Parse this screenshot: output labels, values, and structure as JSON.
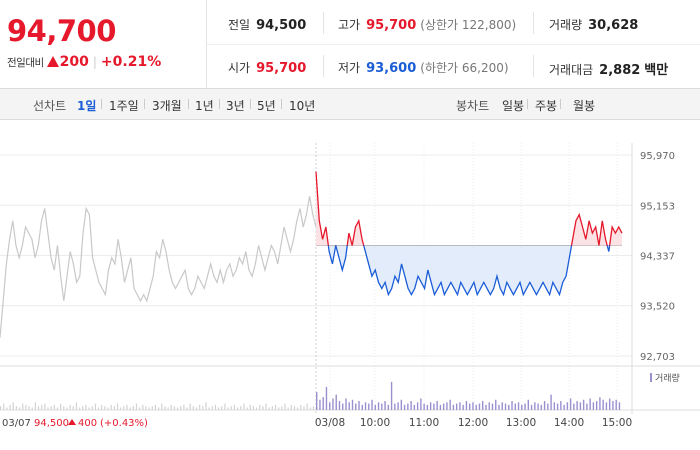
{
  "price": {
    "current": "94,700",
    "change_label": "전일대비",
    "change_amount": "200",
    "change_pct": "+0.21%"
  },
  "stats": {
    "prev": {
      "label": "전일",
      "value": "94,500"
    },
    "high": {
      "label": "고가",
      "value": "95,700",
      "sub": "(상한가 122,800)"
    },
    "volume": {
      "label": "거래량",
      "value": "30,628"
    },
    "open": {
      "label": "시가",
      "value": "95,700"
    },
    "low": {
      "label": "저가",
      "value": "93,600",
      "sub": "(하한가 66,200)"
    },
    "amount": {
      "label": "거래대금",
      "value": "2,882",
      "unit": "백만"
    }
  },
  "line_chart": {
    "label": "선차트",
    "tabs": [
      "1일",
      "1주일",
      "3개월",
      "1년",
      "3년",
      "5년",
      "10년"
    ],
    "active": "1일"
  },
  "candle_chart": {
    "label": "봉차트",
    "tabs": [
      "일봉",
      "주봉",
      "월봉"
    ]
  },
  "colors": {
    "up": "#e5182c",
    "down": "#1a5dd6",
    "prev_day": "#c8c8c8",
    "volume": "#9b8fd0"
  },
  "chart_data": {
    "type": "line",
    "y_ticks": [
      "95,970",
      "95,153",
      "94,337",
      "93,520",
      "92,703"
    ],
    "y_tick_values": [
      95970,
      95153,
      94337,
      93520,
      92703
    ],
    "ylim": [
      92703,
      95970
    ],
    "baseline": 94500,
    "x_ticks": [
      "03/08",
      "10:00",
      "11:00",
      "12:00",
      "13:00",
      "14:00",
      "15:00"
    ],
    "prev_day_date": "03/07",
    "prev_day_close": "94,500",
    "prev_day_change": "400",
    "prev_day_change_pct": "(+0.43%)",
    "legend_volume": "거래량",
    "prev_day_series": [
      93000,
      93600,
      94200,
      94600,
      94900,
      94500,
      94300,
      94500,
      94800,
      94700,
      94600,
      94300,
      94500,
      94900,
      95100,
      94700,
      94300,
      94100,
      94500,
      94000,
      93600,
      94000,
      94400,
      94200,
      93900,
      94000,
      94700,
      95100,
      95000,
      94300,
      94100,
      93900,
      93800,
      93700,
      94100,
      94300,
      94200,
      94600,
      94300,
      93900,
      94100,
      94300,
      93800,
      93700,
      93600,
      93700,
      93600,
      93800,
      94000,
      94400,
      94300,
      94600,
      94400,
      94100,
      93900,
      93800,
      93900,
      94000,
      94100,
      93800,
      93700,
      93800,
      94000,
      93900,
      93800,
      94000,
      94200,
      94000,
      93900,
      94100,
      93900,
      94100,
      94200,
      94000,
      94100,
      94300,
      94200,
      94400,
      94100,
      94000,
      94200,
      94500,
      94300,
      94100,
      94300,
      94500,
      94400,
      94200,
      94500,
      94800,
      94600,
      94400,
      94600,
      94900,
      95100,
      94800,
      95000,
      95300,
      95000,
      94800
    ],
    "today_series": [
      95700,
      94900,
      94600,
      94800,
      94400,
      94200,
      94500,
      94300,
      94100,
      94300,
      94700,
      94500,
      94800,
      94900,
      94600,
      94400,
      94200,
      94000,
      94100,
      93900,
      93800,
      93900,
      93700,
      93800,
      94000,
      93900,
      94200,
      94000,
      93800,
      93700,
      93800,
      94000,
      93900,
      93800,
      94100,
      93900,
      93700,
      93800,
      93900,
      93700,
      93800,
      93900,
      93800,
      93700,
      93900,
      93800,
      93700,
      93800,
      93900,
      93700,
      93800,
      93900,
      93800,
      93700,
      93800,
      94000,
      93800,
      93700,
      93900,
      93800,
      93700,
      93800,
      93900,
      93700,
      93800,
      93900,
      93800,
      93700,
      93800,
      93900,
      93800,
      93700,
      93900,
      93800,
      93700,
      93900,
      94000,
      94300,
      94600,
      94900,
      95000,
      94800,
      94600,
      94900,
      94700,
      94800,
      94500,
      94900,
      94600,
      94400,
      94800,
      94700,
      94800,
      94700
    ],
    "prev_day_volume": [
      3,
      5,
      2,
      4,
      6,
      3,
      2,
      5,
      4,
      3,
      2,
      6,
      3,
      4,
      5,
      2,
      3,
      4,
      2,
      5,
      3,
      2,
      4,
      3,
      6,
      2,
      3,
      4,
      2,
      3,
      5,
      2,
      4,
      3,
      2,
      4,
      3,
      5,
      2,
      3,
      4,
      2,
      3,
      5,
      2,
      4,
      3,
      2,
      3,
      4,
      2,
      5,
      3,
      2,
      4,
      3,
      2,
      3,
      4,
      2,
      5,
      3,
      2,
      4,
      3,
      6,
      2,
      3,
      4,
      2,
      3,
      5,
      2,
      3,
      4,
      2,
      3,
      5,
      2,
      4,
      3,
      2,
      4,
      3,
      5,
      2,
      3,
      4,
      2,
      3,
      5,
      2,
      4,
      3,
      2,
      4,
      3,
      5,
      2,
      3
    ],
    "today_volume": [
      14,
      8,
      10,
      18,
      6,
      9,
      12,
      7,
      5,
      9,
      6,
      8,
      5,
      7,
      4,
      6,
      5,
      8,
      4,
      6,
      5,
      7,
      4,
      22,
      5,
      6,
      8,
      4,
      5,
      7,
      4,
      6,
      9,
      5,
      4,
      6,
      5,
      7,
      4,
      5,
      6,
      8,
      4,
      5,
      6,
      4,
      7,
      5,
      6,
      4,
      5,
      7,
      4,
      6,
      5,
      8,
      4,
      6,
      5,
      4,
      7,
      5,
      6,
      4,
      5,
      8,
      4,
      6,
      5,
      4,
      7,
      5,
      12,
      6,
      5,
      7,
      4,
      6,
      9,
      5,
      7,
      6,
      8,
      5,
      9,
      6,
      7,
      10,
      8,
      6,
      9,
      7,
      8,
      6
    ]
  }
}
